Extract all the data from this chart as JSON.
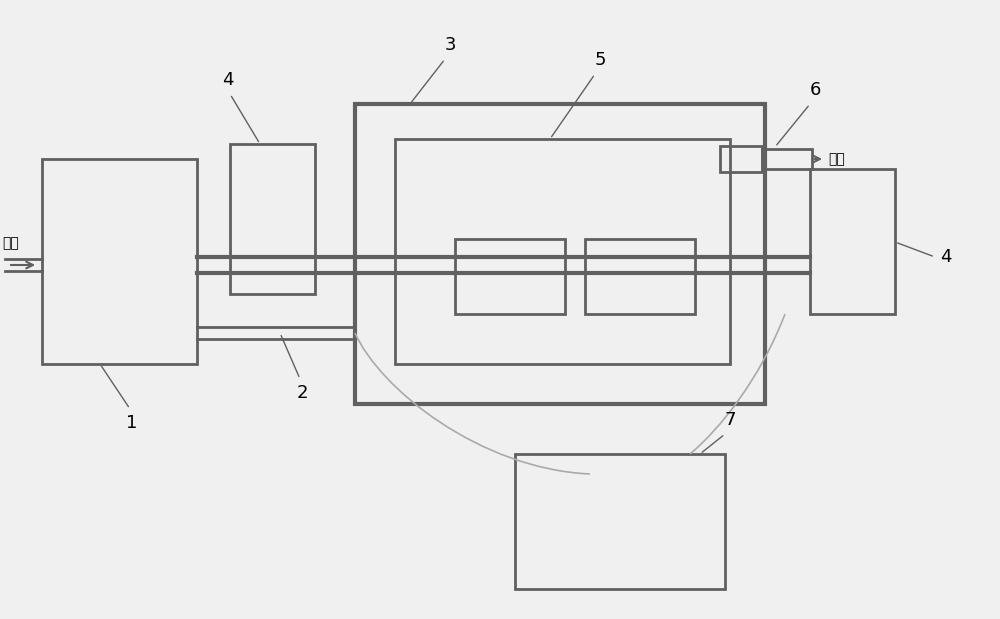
{
  "bg_color": "#f0f0f0",
  "line_color": "#606060",
  "box_color": "#606060",
  "lw_thin": 1.5,
  "lw_med": 2.0,
  "lw_thick": 3.0,
  "fig_width": 10.0,
  "fig_height": 6.19
}
